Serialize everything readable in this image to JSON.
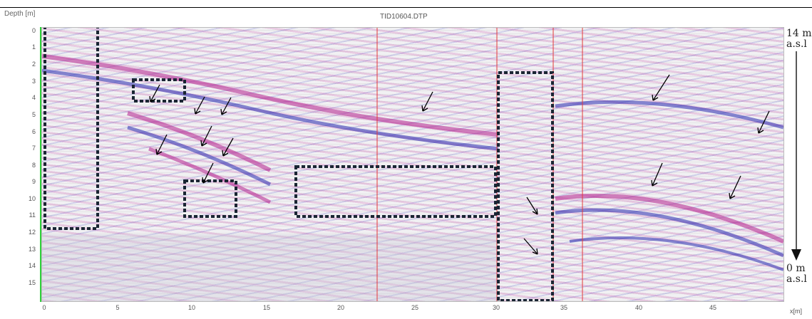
{
  "header": {
    "depth_label": "Depth [m]",
    "file_name": "TID10604.DTP"
  },
  "y_axis": {
    "ticks": [
      "0",
      "1",
      "2",
      "3",
      "4",
      "5",
      "6",
      "7",
      "8",
      "9",
      "10",
      "11",
      "12",
      "13",
      "14",
      "15"
    ]
  },
  "x_axis": {
    "ticks": [
      "0",
      "5",
      "10",
      "15",
      "20",
      "25",
      "30",
      "35",
      "40",
      "45"
    ],
    "unit": "x[m]"
  },
  "elevation": {
    "top_value": "14 m",
    "top_ref": "a.s.l",
    "bottom_value": "0 m",
    "bottom_ref": "a.s.l"
  },
  "colors": {
    "box": "#1a2533",
    "marker_line": "#e23a3a",
    "green_line": "#2fd13a",
    "arrow": "#000000"
  }
}
